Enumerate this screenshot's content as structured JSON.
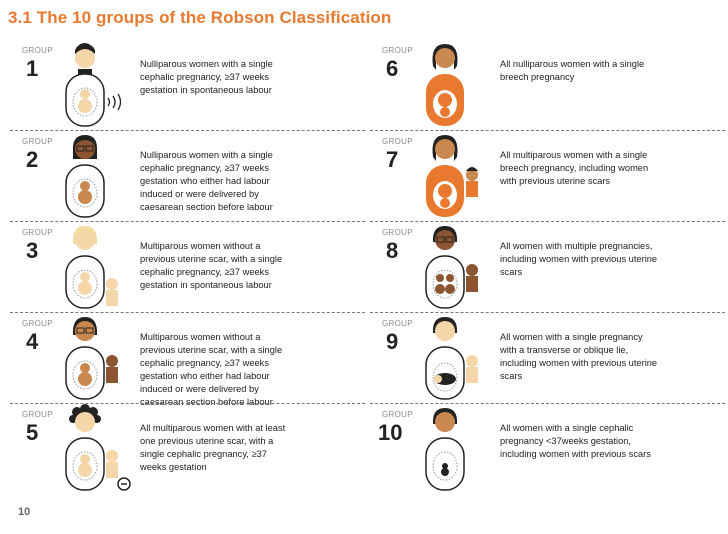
{
  "header": {
    "title": "3.1 The 10 groups of the Robson Classification"
  },
  "footer": {
    "page_number": "10"
  },
  "colors": {
    "accent": "#e8792e",
    "skin_light": "#f5d6a8",
    "skin_medium": "#c8884f",
    "skin_dark": "#8a5530",
    "hair": "#222222",
    "baby": "#e8792e"
  },
  "groups": [
    {
      "label": "GROUP",
      "number": "1",
      "icon": "nulliparous-spontaneous-labour-icon",
      "text": "Nulliparous women with a single cephalic pregnancy, ≥37 weeks gestation in spontaneous labour"
    },
    {
      "label": "GROUP",
      "number": "2",
      "icon": "nulliparous-induced-icon",
      "text": "Nulliparous women with a single cephalic pregnancy, ≥37 weeks gestation who either had labour induced or were delivered by caesarean section before labour"
    },
    {
      "label": "GROUP",
      "number": "3",
      "icon": "multiparous-spontaneous-labour-icon",
      "text": "Multiparous women without a previous uterine scar, with a single cephalic pregnancy, ≥37 weeks gestation in spontaneous labour"
    },
    {
      "label": "GROUP",
      "number": "4",
      "icon": "multiparous-induced-icon",
      "text": "Multiparous women without a previous uterine scar, with a single cephalic pregnancy, ≥37 weeks gestation who either had labour induced or were delivered by caesarean section before labour"
    },
    {
      "label": "GROUP",
      "number": "5",
      "icon": "previous-scar-icon",
      "text": "All multiparous women with at least one previous uterine scar, with a single cephalic pregnancy, ≥37 weeks gestation"
    },
    {
      "label": "GROUP",
      "number": "6",
      "icon": "nulliparous-breech-icon",
      "text": "All nulliparous women with a single breech pregnancy"
    },
    {
      "label": "GROUP",
      "number": "7",
      "icon": "multiparous-breech-icon",
      "text": "All multiparous women with a single breech pregnancy, including women with previous uterine scars"
    },
    {
      "label": "GROUP",
      "number": "8",
      "icon": "multiple-pregnancy-icon",
      "text": "All women with multiple pregnancies, including women with previous uterine scars"
    },
    {
      "label": "GROUP",
      "number": "9",
      "icon": "transverse-lie-icon",
      "text": "All women with a single pregnancy with a transverse or oblique lie, including women with previous uterine scars"
    },
    {
      "label": "GROUP",
      "number": "10",
      "icon": "preterm-cephalic-icon",
      "text": "All women with a single cephalic pregnancy <37weeks gestation, including women with previous scars"
    }
  ]
}
